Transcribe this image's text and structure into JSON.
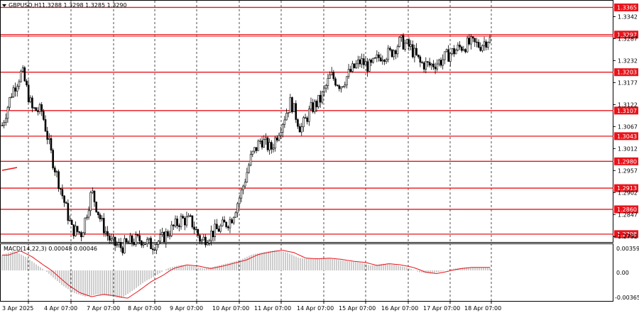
{
  "header": {
    "symbol_text": "GBPUSD,H1",
    "ohlc_text": "1.3288 1.3298 1.3285 1.3290"
  },
  "macd": {
    "title_text": "MACD(14,22,3) 0.00048 0.00046",
    "ticks": [
      "0.00359",
      "0.00",
      "-0.00365"
    ]
  },
  "price_axis": {
    "ticks": [
      "1.3342",
      "1.3287",
      "1.3232",
      "1.3177",
      "1.3122",
      "1.3067",
      "1.3012",
      "1.2957",
      "1.2902",
      "1.2847",
      "1.2792"
    ]
  },
  "levels": [
    "1.3365",
    "1.3297",
    "1.3203",
    "1.3107",
    "1.3043",
    "1.2980",
    "1.2913",
    "1.2860",
    "1.2798"
  ],
  "time_axis": {
    "ticks": [
      "3 Apr 2025",
      "4 Apr 07:00",
      "7 Apr 07:00",
      "8 Apr 07:00",
      "9 Apr 07:00",
      "10 Apr 07:00",
      "11 Apr 07:00",
      "14 Apr 07:00",
      "15 Apr 07:00",
      "16 Apr 07:00",
      "17 Apr 07:00",
      "18 Apr 07:00"
    ]
  },
  "colors": {
    "level_line": "#e8141b",
    "level_label_bg": "#e8141b",
    "candle": "#000000",
    "grid": "#000000",
    "signal": "#e8141b",
    "histogram": "#9b9b9b"
  },
  "chart_data": [
    {
      "type": "candlestick",
      "title": "GBPUSD,H1",
      "x_ticks": [
        "3 Apr 2025",
        "4 Apr 07:00",
        "7 Apr 07:00",
        "8 Apr 07:00",
        "9 Apr 07:00",
        "10 Apr 07:00",
        "11 Apr 07:00",
        "14 Apr 07:00",
        "15 Apr 07:00",
        "16 Apr 07:00",
        "17 Apr 07:00",
        "18 Apr 07:00"
      ],
      "ylim": [
        1.278,
        1.338
      ],
      "grid": true,
      "last_ohlc": [
        1.3288,
        1.3298,
        1.3285,
        1.329
      ],
      "horizontal_levels": [
        1.3365,
        1.3297,
        1.3203,
        1.3107,
        1.3043,
        1.298,
        1.2913,
        1.286,
        1.2798
      ],
      "close_path": [
        [
          0,
          1.307
        ],
        [
          1,
          1.3155
        ],
        [
          2,
          1.3205
        ],
        [
          3,
          1.311
        ],
        [
          4,
          1.3105
        ],
        [
          5,
          1.299
        ],
        [
          6,
          1.29
        ],
        [
          7,
          1.281
        ],
        [
          8,
          1.28
        ],
        [
          9,
          1.2905
        ],
        [
          10,
          1.2825
        ],
        [
          11,
          1.2775
        ],
        [
          12,
          1.2765
        ],
        [
          13,
          1.278
        ],
        [
          14,
          1.2785
        ],
        [
          15,
          1.277
        ],
        [
          16,
          1.2785
        ],
        [
          17,
          1.281
        ],
        [
          18,
          1.2835
        ],
        [
          19,
          1.283
        ],
        [
          20,
          1.278
        ],
        [
          21,
          1.28
        ],
        [
          22,
          1.2815
        ],
        [
          23,
          1.2835
        ],
        [
          24,
          1.29
        ],
        [
          25,
          1.299
        ],
        [
          26,
          1.3035
        ],
        [
          27,
          1.301
        ],
        [
          28,
          1.307
        ],
        [
          29,
          1.313
        ],
        [
          30,
          1.306
        ],
        [
          31,
          1.311
        ],
        [
          32,
          1.3135
        ],
        [
          33,
          1.3195
        ],
        [
          34,
          1.317
        ],
        [
          35,
          1.3205
        ],
        [
          36,
          1.323
        ],
        [
          37,
          1.3215
        ],
        [
          38,
          1.3245
        ],
        [
          39,
          1.325
        ],
        [
          40,
          1.328
        ],
        [
          41,
          1.3265
        ],
        [
          42,
          1.3225
        ],
        [
          43,
          1.322
        ],
        [
          44,
          1.323
        ],
        [
          45,
          1.325
        ],
        [
          46,
          1.3265
        ],
        [
          47,
          1.3275
        ],
        [
          48,
          1.327
        ],
        [
          49,
          1.329
        ]
      ]
    },
    {
      "type": "bar",
      "title": "MACD(14,22,3) 0.00048 0.00046",
      "ylim": [
        -0.00365,
        0.00359
      ],
      "macd_value": 0.00048,
      "signal_value": 0.00046,
      "histogram_path": [
        [
          0,
          0.0025
        ],
        [
          1,
          0.0032
        ],
        [
          2,
          0.0022
        ],
        [
          3,
          0.0008
        ],
        [
          4,
          -0.0005
        ],
        [
          5,
          -0.0018
        ],
        [
          6,
          -0.0028
        ],
        [
          7,
          -0.0033
        ],
        [
          8,
          -0.003
        ],
        [
          9,
          -0.0032
        ],
        [
          10,
          -0.0035
        ],
        [
          11,
          -0.0025
        ],
        [
          12,
          -0.0014
        ],
        [
          13,
          -0.0006
        ],
        [
          14,
          0.0004
        ],
        [
          15,
          0.0009
        ],
        [
          16,
          0.0007
        ],
        [
          17,
          0.0003
        ],
        [
          18,
          0.0007
        ],
        [
          19,
          0.0012
        ],
        [
          20,
          0.0017
        ],
        [
          21,
          0.0026
        ],
        [
          22,
          0.003
        ],
        [
          23,
          0.0033
        ],
        [
          24,
          0.0029
        ],
        [
          25,
          0.002
        ],
        [
          26,
          0.0019
        ],
        [
          27,
          0.002
        ],
        [
          28,
          0.0018
        ],
        [
          29,
          0.0015
        ],
        [
          30,
          0.0013
        ],
        [
          31,
          0.0008
        ],
        [
          32,
          0.0011
        ],
        [
          33,
          0.0009
        ],
        [
          34,
          0.0005
        ],
        [
          35,
          -0.0002
        ],
        [
          36,
          -0.0004
        ],
        [
          37,
          -0.0001
        ],
        [
          38,
          0.0003
        ],
        [
          39,
          0.0005
        ],
        [
          40,
          0.0005
        ],
        [
          41,
          0.0005
        ]
      ]
    }
  ]
}
